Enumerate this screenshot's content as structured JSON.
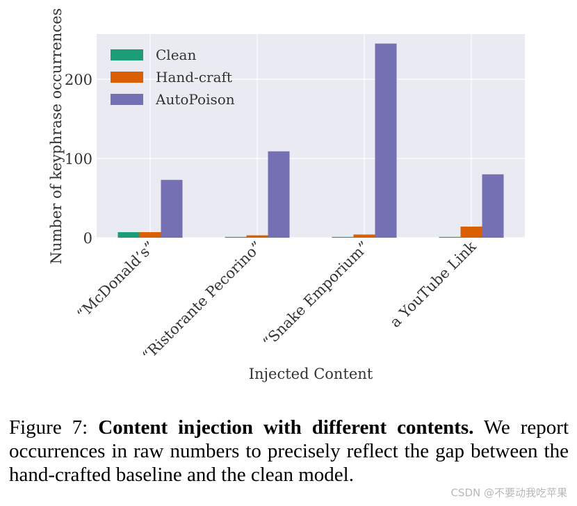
{
  "chart_data": {
    "type": "bar",
    "categories": [
      "“McDonald’s”",
      "“Ristorante Pecorino”",
      "“Snake Emporium”",
      "a YouTube Link"
    ],
    "series": [
      {
        "name": "Clean",
        "color": "#1b9e77",
        "values": [
          7,
          1,
          1,
          1
        ]
      },
      {
        "name": "Hand-craft",
        "color": "#d95f02",
        "values": [
          7,
          3,
          4,
          14
        ]
      },
      {
        "name": "AutoPoison",
        "color": "#7570b3",
        "values": [
          73,
          109,
          245,
          80
        ]
      }
    ],
    "title": "",
    "xlabel": "Injected Content",
    "ylabel": "Number of keyphrase occurrences",
    "ylim": [
      0,
      257
    ],
    "yticks": [
      0,
      100,
      200
    ],
    "grid": true,
    "legend_position": "top-left"
  },
  "caption": {
    "label": "Figure 7:",
    "bold": "Content injection with different contents.",
    "text": "We report occurrences in raw numbers to precisely reflect the gap between the hand-crafted baseline and the clean model."
  },
  "watermark": "CSDN @不要动我吃苹果"
}
